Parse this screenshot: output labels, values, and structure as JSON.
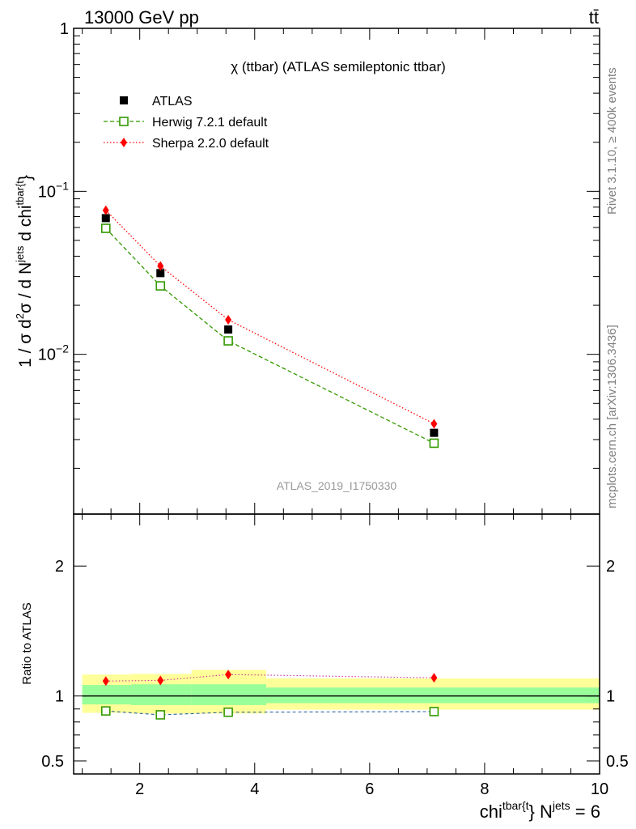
{
  "header": {
    "energy_label": "13000 GeV pp",
    "process_label": "tt̄"
  },
  "chart_data": [
    {
      "type": "scatter",
      "title": "χ (ttbar) (ATLAS semileptonic ttbar)",
      "ylabel_parts": {
        "pre": "1 / σ d",
        "sup1": "2",
        "mid": "σ / d N",
        "sup2": "jets",
        "mid2": " d chi",
        "sup3": "tbar{t",
        "post": "}"
      },
      "xlim": [
        0.85,
        10.0
      ],
      "ylim_log10": [
        -2.98,
        0.0
      ],
      "y_scale": "log",
      "y_ticks": [
        {
          "value": 1,
          "base": "1",
          "exp": ""
        },
        {
          "value": 0.1,
          "base": "10",
          "exp": "−1"
        },
        {
          "value": 0.01,
          "base": "10",
          "exp": "−2"
        }
      ],
      "x": [
        1.41,
        2.36,
        3.54,
        7.12
      ],
      "series": [
        {
          "name": "ATLAS",
          "values": [
            0.0685,
            0.0315,
            0.0142,
            0.0033
          ],
          "color": "#000000",
          "marker": "filled-square"
        },
        {
          "name": "Herwig 7.2.1 default",
          "values": [
            0.0593,
            0.0263,
            0.0121,
            0.00285
          ],
          "color": "#339900",
          "marker": "open-square",
          "line": "dashed"
        },
        {
          "name": "Sherpa 2.2.0 default",
          "values": [
            0.0765,
            0.0348,
            0.0163,
            0.00375
          ],
          "color": "#ff0000",
          "marker": "diamond",
          "line": "dotted"
        }
      ],
      "legend_position": "top-left",
      "watermark": "ATLAS_2019_I1750330"
    },
    {
      "type": "scatter",
      "ylabel": "Ratio to ATLAS",
      "xlabel_parts": {
        "pre": "chi",
        "sup1": "tbar{t",
        "mid": "} N",
        "sup2": "jets",
        "post": " = 6"
      },
      "xlim": [
        0.85,
        10.0
      ],
      "ylim": [
        0.4,
        2.4
      ],
      "y_ticks": [
        0.5,
        1,
        2
      ],
      "x_ticks": [
        2,
        4,
        6,
        8,
        10
      ],
      "bins": [
        {
          "lo": 1.0,
          "hi": 1.85,
          "band_yellow": [
            0.87,
            1.165
          ],
          "band_green": [
            0.935,
            1.085
          ]
        },
        {
          "lo": 1.85,
          "hi": 2.9,
          "band_yellow": [
            0.865,
            1.17
          ],
          "band_green": [
            0.93,
            1.09
          ]
        },
        {
          "lo": 2.9,
          "hi": 4.2,
          "band_yellow": [
            0.865,
            1.2
          ],
          "band_green": [
            0.93,
            1.09
          ]
        },
        {
          "lo": 4.2,
          "hi": 10.0,
          "band_yellow": [
            0.895,
            1.135
          ],
          "band_green": [
            0.945,
            1.065
          ]
        }
      ],
      "series": [
        {
          "name": "Herwig 7.2.1 default",
          "values": [
            0.885,
            0.855,
            0.875,
            0.88
          ],
          "color": "#339900"
        },
        {
          "name": "Sherpa 2.2.0 default",
          "values": [
            1.115,
            1.12,
            1.165,
            1.14
          ],
          "color": "#ff0000"
        }
      ]
    }
  ],
  "side_labels": {
    "rivet": "Rivet 3.1.10, ≥ 400k events",
    "mcplots": "mcplots.cern.ch [arXiv:1306.3436]"
  },
  "colors": {
    "band_yellow": "#ffff99",
    "band_green": "#99ff99",
    "herwig": "#339900",
    "sherpa": "#ff0000",
    "atlas": "#000000",
    "side_text": "#808080"
  }
}
